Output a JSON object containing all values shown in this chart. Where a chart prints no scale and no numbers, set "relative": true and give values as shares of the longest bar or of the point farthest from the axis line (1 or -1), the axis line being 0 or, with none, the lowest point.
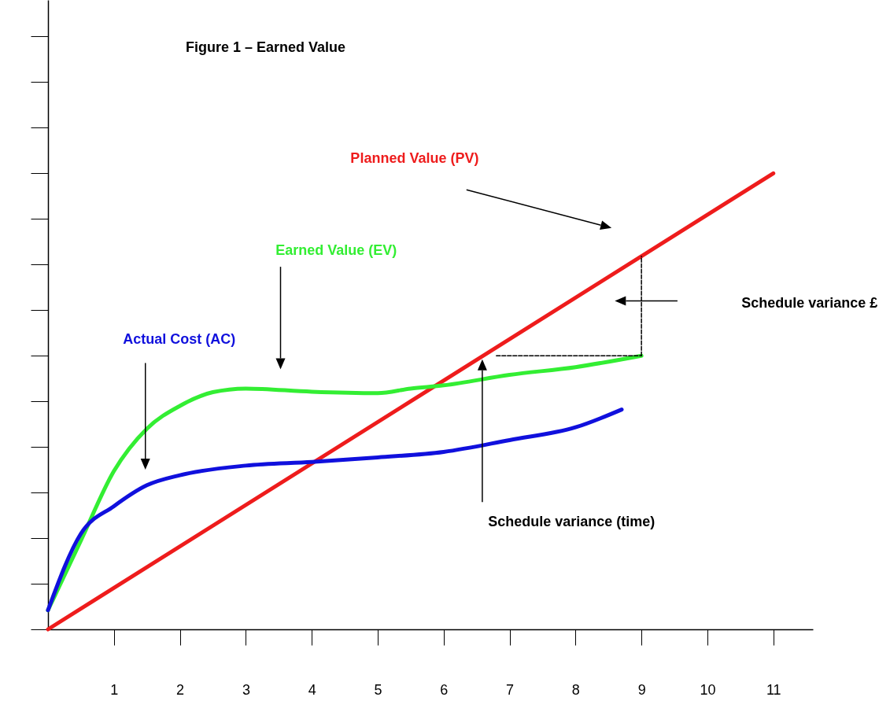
{
  "chart_data": {
    "type": "line",
    "title": "Figure 1 – Earned Value",
    "relative": true,
    "xlim": [
      0,
      11.6
    ],
    "xticks": [
      1,
      2,
      3,
      4,
      5,
      6,
      7,
      8,
      9,
      10,
      11
    ],
    "annotations": [
      "Schedule variance £",
      "Schedule variance (time)"
    ],
    "series": [
      {
        "name": "Planned Value (PV)",
        "color": "#ee1c1c",
        "x": [
          0,
          11
        ],
        "values": [
          0,
          1
        ]
      },
      {
        "name": "Earned Value (EV)",
        "color": "#33ee33",
        "x": [
          0,
          0.5,
          1,
          1.5,
          2,
          2.5,
          3,
          4,
          5,
          5.5,
          6,
          7,
          8,
          9
        ],
        "values": [
          0.042,
          0.195,
          0.347,
          0.44,
          0.49,
          0.52,
          0.528,
          0.521,
          0.518,
          0.528,
          0.535,
          0.558,
          0.575,
          0.6
        ]
      },
      {
        "name": "Actual Cost (AC)",
        "color": "#1010dd",
        "x": [
          0,
          0.5,
          1,
          1.5,
          2,
          3,
          4,
          5,
          6,
          7,
          8,
          8.7
        ],
        "values": [
          0.042,
          0.21,
          0.27,
          0.316,
          0.338,
          0.359,
          0.367,
          0.377,
          0.389,
          0.415,
          0.443,
          0.482
        ]
      },
      {
        "color": "#000000",
        "line_style": "dashed",
        "x": [
          6.8,
          9
        ],
        "values": [
          0.6,
          0.6
        ]
      },
      {
        "color": "#000000",
        "line_style": "dashed",
        "x": [
          9,
          9
        ],
        "values": [
          0.6,
          0.818
        ]
      }
    ]
  }
}
